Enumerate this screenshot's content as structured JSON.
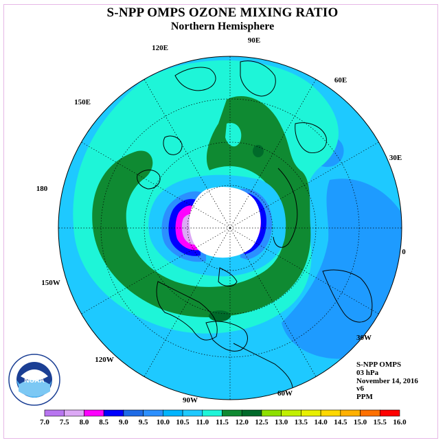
{
  "title": "S-NPP OMPS OZONE MIXING RATIO",
  "subtitle": "Northern Hemisphere",
  "longitude_labels": [
    {
      "text": "90E"
    },
    {
      "text": "60E"
    },
    {
      "text": "30E"
    },
    {
      "text": "0"
    },
    {
      "text": "30W"
    },
    {
      "text": "60W"
    },
    {
      "text": "90W"
    },
    {
      "text": "120W"
    },
    {
      "text": "150W"
    },
    {
      "text": "180"
    },
    {
      "text": "150E"
    },
    {
      "text": "120E"
    }
  ],
  "info": {
    "instrument": "S-NPP OMPS",
    "level": "03 hPa",
    "date": "November 14, 2016",
    "version": "v6",
    "units": "PPM"
  },
  "logo": {
    "text": "NOAA",
    "icon": "noaa-logo-icon"
  },
  "colorbar": {
    "ticks": [
      "7.0",
      "7.5",
      "8.0",
      "8.5",
      "9.0",
      "9.5",
      "10.0",
      "10.5",
      "11.0",
      "11.5",
      "12.0",
      "12.5",
      "13.0",
      "13.5",
      "14.0",
      "14.5",
      "15.0",
      "15.5",
      "16.0"
    ],
    "colors": [
      "#b875f0",
      "#dca8f5",
      "#ff00ff",
      "#0000ff",
      "#1e6be6",
      "#2b8fff",
      "#00b4ff",
      "#1ec9ff",
      "#1ef5d8",
      "#0f8a32",
      "#006a2a",
      "#8ee000",
      "#c2f000",
      "#e8f000",
      "#ffd800",
      "#ffb000",
      "#ff7000",
      "#ff0000",
      "#8b5a2b"
    ]
  },
  "map_colors": {
    "background": "#1ec9ff",
    "level_11_0": "#1ef5d8",
    "level_11_5": "#0f8a32",
    "level_12_0": "#006a2a",
    "low_9_5": "#2b8fff",
    "pole_cap": "#ffffff"
  }
}
